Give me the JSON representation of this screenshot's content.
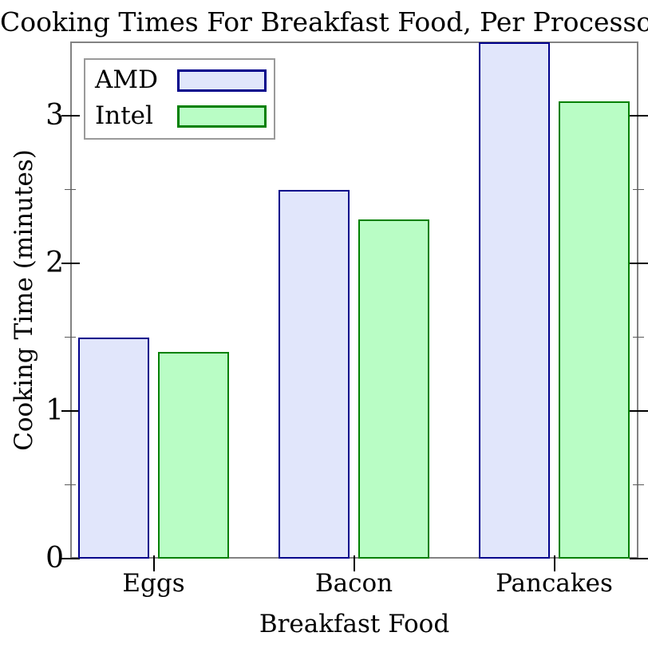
{
  "chart_data": {
    "type": "bar",
    "title": "Cooking Times For Breakfast Food, Per Processor",
    "xlabel": "Breakfast Food",
    "ylabel": "Cooking Time (minutes)",
    "categories": [
      "Eggs",
      "Bacon",
      "Pancakes"
    ],
    "series": [
      {
        "name": "AMD",
        "values": [
          1.5,
          2.5,
          3.5
        ],
        "fill": "#e1e6fb",
        "border": "#00008b"
      },
      {
        "name": "Intel",
        "values": [
          1.4,
          2.3,
          3.1
        ],
        "fill": "#b9fdc5",
        "border": "#008000"
      }
    ],
    "ylim": [
      0,
      3.5
    ],
    "yticks_major": [
      0,
      1,
      2,
      3
    ],
    "yticks_minor": [
      0.5,
      1.5,
      2.5
    ],
    "grid": false,
    "legend_position": "top-left",
    "frame_color": "#828282",
    "tick_color": "#000000"
  }
}
